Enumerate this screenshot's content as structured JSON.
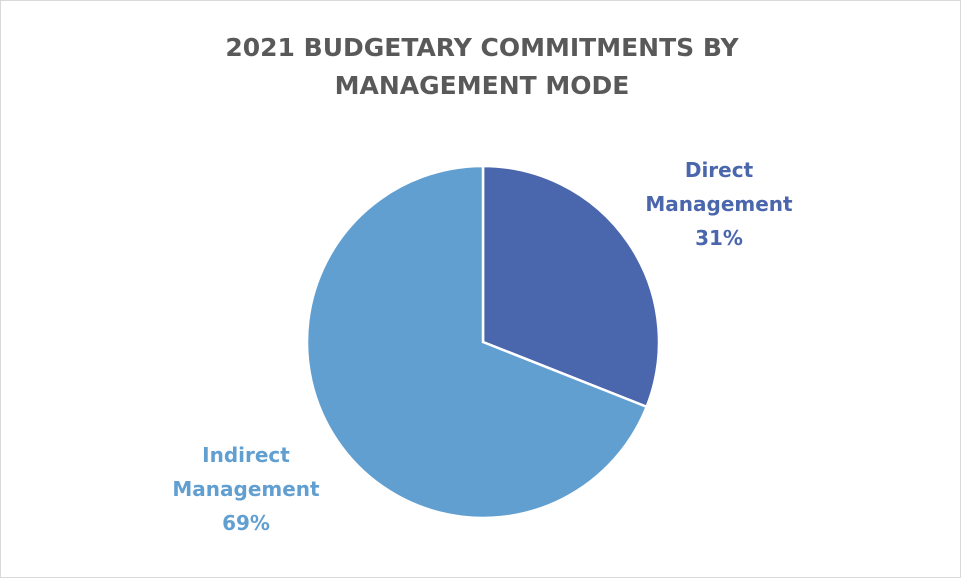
{
  "chart_data": {
    "type": "pie",
    "title": "2021 BUDGETARY COMMITMENTS BY MANAGEMENT MODE",
    "categories": [
      "Direct Management",
      "Indirect Management"
    ],
    "values": [
      31,
      69
    ],
    "value_labels": [
      "31%",
      "69%"
    ],
    "colors": [
      "#4a66ad",
      "#629fd1"
    ]
  }
}
